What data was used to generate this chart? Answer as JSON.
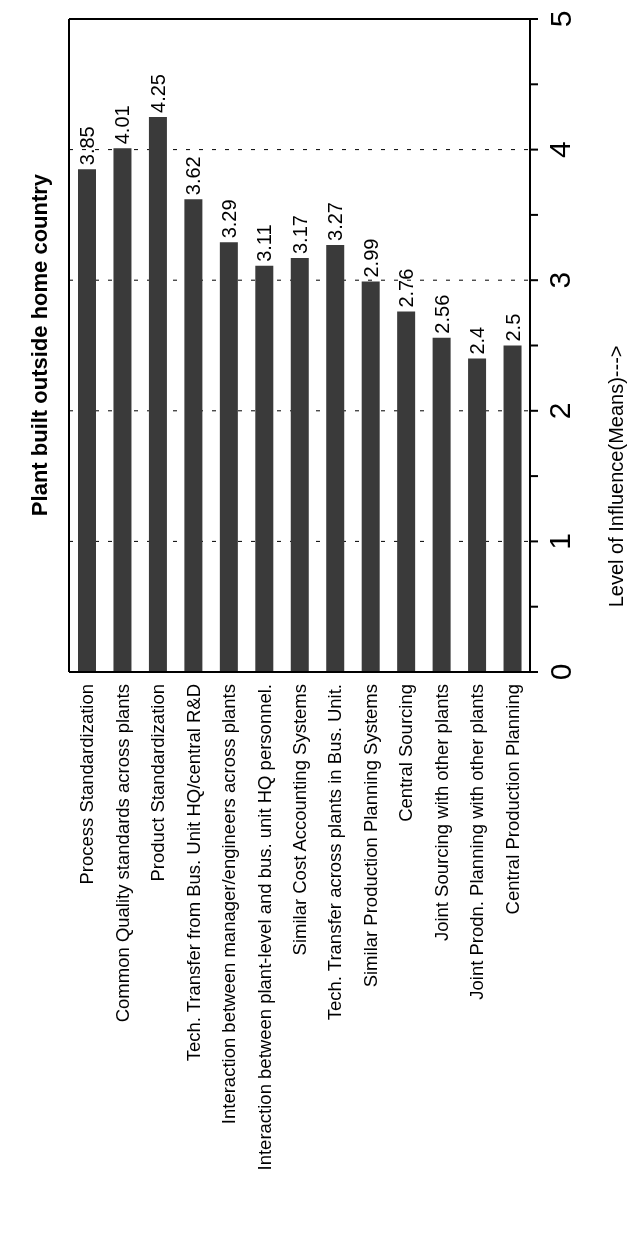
{
  "chart_data": {
    "type": "bar",
    "title": "Plant built outside home country",
    "ylabel": "Level of Influence(Means)--->",
    "categories": [
      "Process Standardization",
      "Common Quality standards across plants",
      "Product Standardization",
      "Tech. Transfer from Bus. Unit HQ/central R&D",
      "Interaction between manager/engineers across plants",
      "Interaction between plant-level and bus. unit HQ personnel.",
      "Similar Cost Accounting Systems",
      "Tech. Transfer across plants in Bus. Unit.",
      "Similar Production Planning Systems",
      "Central Sourcing",
      "Joint Sourcing with other plants",
      "Joint Prodn. Planning with other plants",
      "Central Production Planning"
    ],
    "values": [
      3.85,
      4.01,
      4.25,
      3.62,
      3.29,
      3.11,
      3.17,
      3.27,
      2.99,
      2.76,
      2.56,
      2.4,
      2.5
    ],
    "color": "#3a3a3a",
    "data_labels": true,
    "grid": "y",
    "ylim": [
      0,
      5
    ],
    "yticks": [
      0,
      {
        "value": 0.5,
        "label": null
      },
      1,
      {
        "value": 1.5,
        "label": null
      },
      2,
      {
        "value": 2.5,
        "label": null
      },
      3,
      {
        "value": 3.5,
        "label": null
      },
      4,
      {
        "value": 4.5,
        "label": null
      },
      5
    ]
  }
}
